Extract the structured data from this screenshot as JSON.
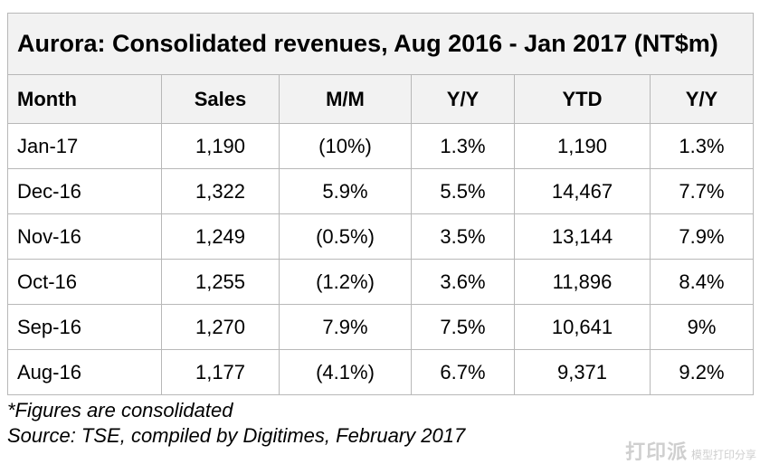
{
  "table": {
    "title": "Aurora: Consolidated revenues, Aug 2016 - Jan 2017 (NT$m)",
    "columns": [
      "Month",
      "Sales",
      "M/M",
      "Y/Y",
      "YTD",
      "Y/Y"
    ],
    "rows": [
      [
        "Jan-17",
        "1,190",
        "(10%)",
        "1.3%",
        "1,190",
        "1.3%"
      ],
      [
        "Dec-16",
        "1,322",
        "5.9%",
        "5.5%",
        "14,467",
        "7.7%"
      ],
      [
        "Nov-16",
        "1,249",
        "(0.5%)",
        "3.5%",
        "13,144",
        "7.9%"
      ],
      [
        "Oct-16",
        "1,255",
        "(1.2%)",
        "3.6%",
        "11,896",
        "8.4%"
      ],
      [
        "Sep-16",
        "1,270",
        "7.9%",
        "7.5%",
        "10,641",
        "9%"
      ],
      [
        "Aug-16",
        "1,177",
        "(4.1%)",
        "6.7%",
        "9,371",
        "9.2%"
      ]
    ]
  },
  "notes": {
    "line1": "*Figures are consolidated",
    "line2": "Source: TSE, compiled by Digitimes, February 2017"
  },
  "watermark": {
    "main": "打印派",
    "sub": "模型打印分享"
  }
}
